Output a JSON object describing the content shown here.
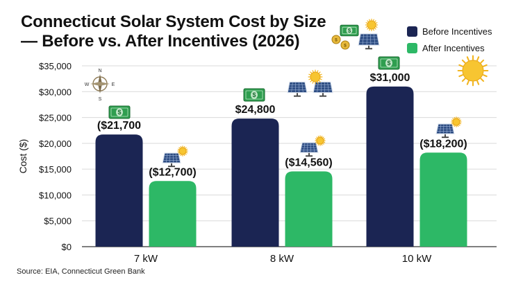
{
  "title_line1": "Connecticut Solar System Cost by Size",
  "title_line2": "— Before vs. After Incentives (2026)",
  "source": "Source: EIA, Connecticut Green Bank",
  "colors": {
    "before": "#1b2553",
    "after": "#2db866",
    "grid": "#d9d9d9"
  },
  "icons": [
    "money-icon",
    "coins-icon",
    "solar-panel-icon",
    "sun-icon",
    "compass-icon"
  ],
  "chart_data": {
    "type": "bar",
    "categories": [
      "7 kW",
      "8 kW",
      "10 kW"
    ],
    "series": [
      {
        "name": "Before Incentives",
        "values": [
          21700,
          24800,
          31000
        ],
        "labels": [
          "($21,700",
          "$24,800",
          "$31,000"
        ]
      },
      {
        "name": "After Incentives",
        "values": [
          12700,
          14560,
          18200
        ],
        "labels": [
          "($12,700)",
          "($14,560)",
          "($18,200)"
        ]
      }
    ],
    "ylabel": "Cost ($)",
    "ylim": [
      0,
      35000
    ],
    "yticks": [
      0,
      5000,
      10000,
      15000,
      20000,
      25000,
      30000,
      35000
    ],
    "ytick_labels": [
      "$0",
      "$5,000",
      "$10,000",
      "$15,000",
      "$20,000",
      "$25,000",
      "$30,000",
      "$35,000"
    ],
    "grid": true,
    "legend_position": "top-right"
  },
  "compass_letters": [
    "N",
    "E",
    "S",
    "W"
  ]
}
